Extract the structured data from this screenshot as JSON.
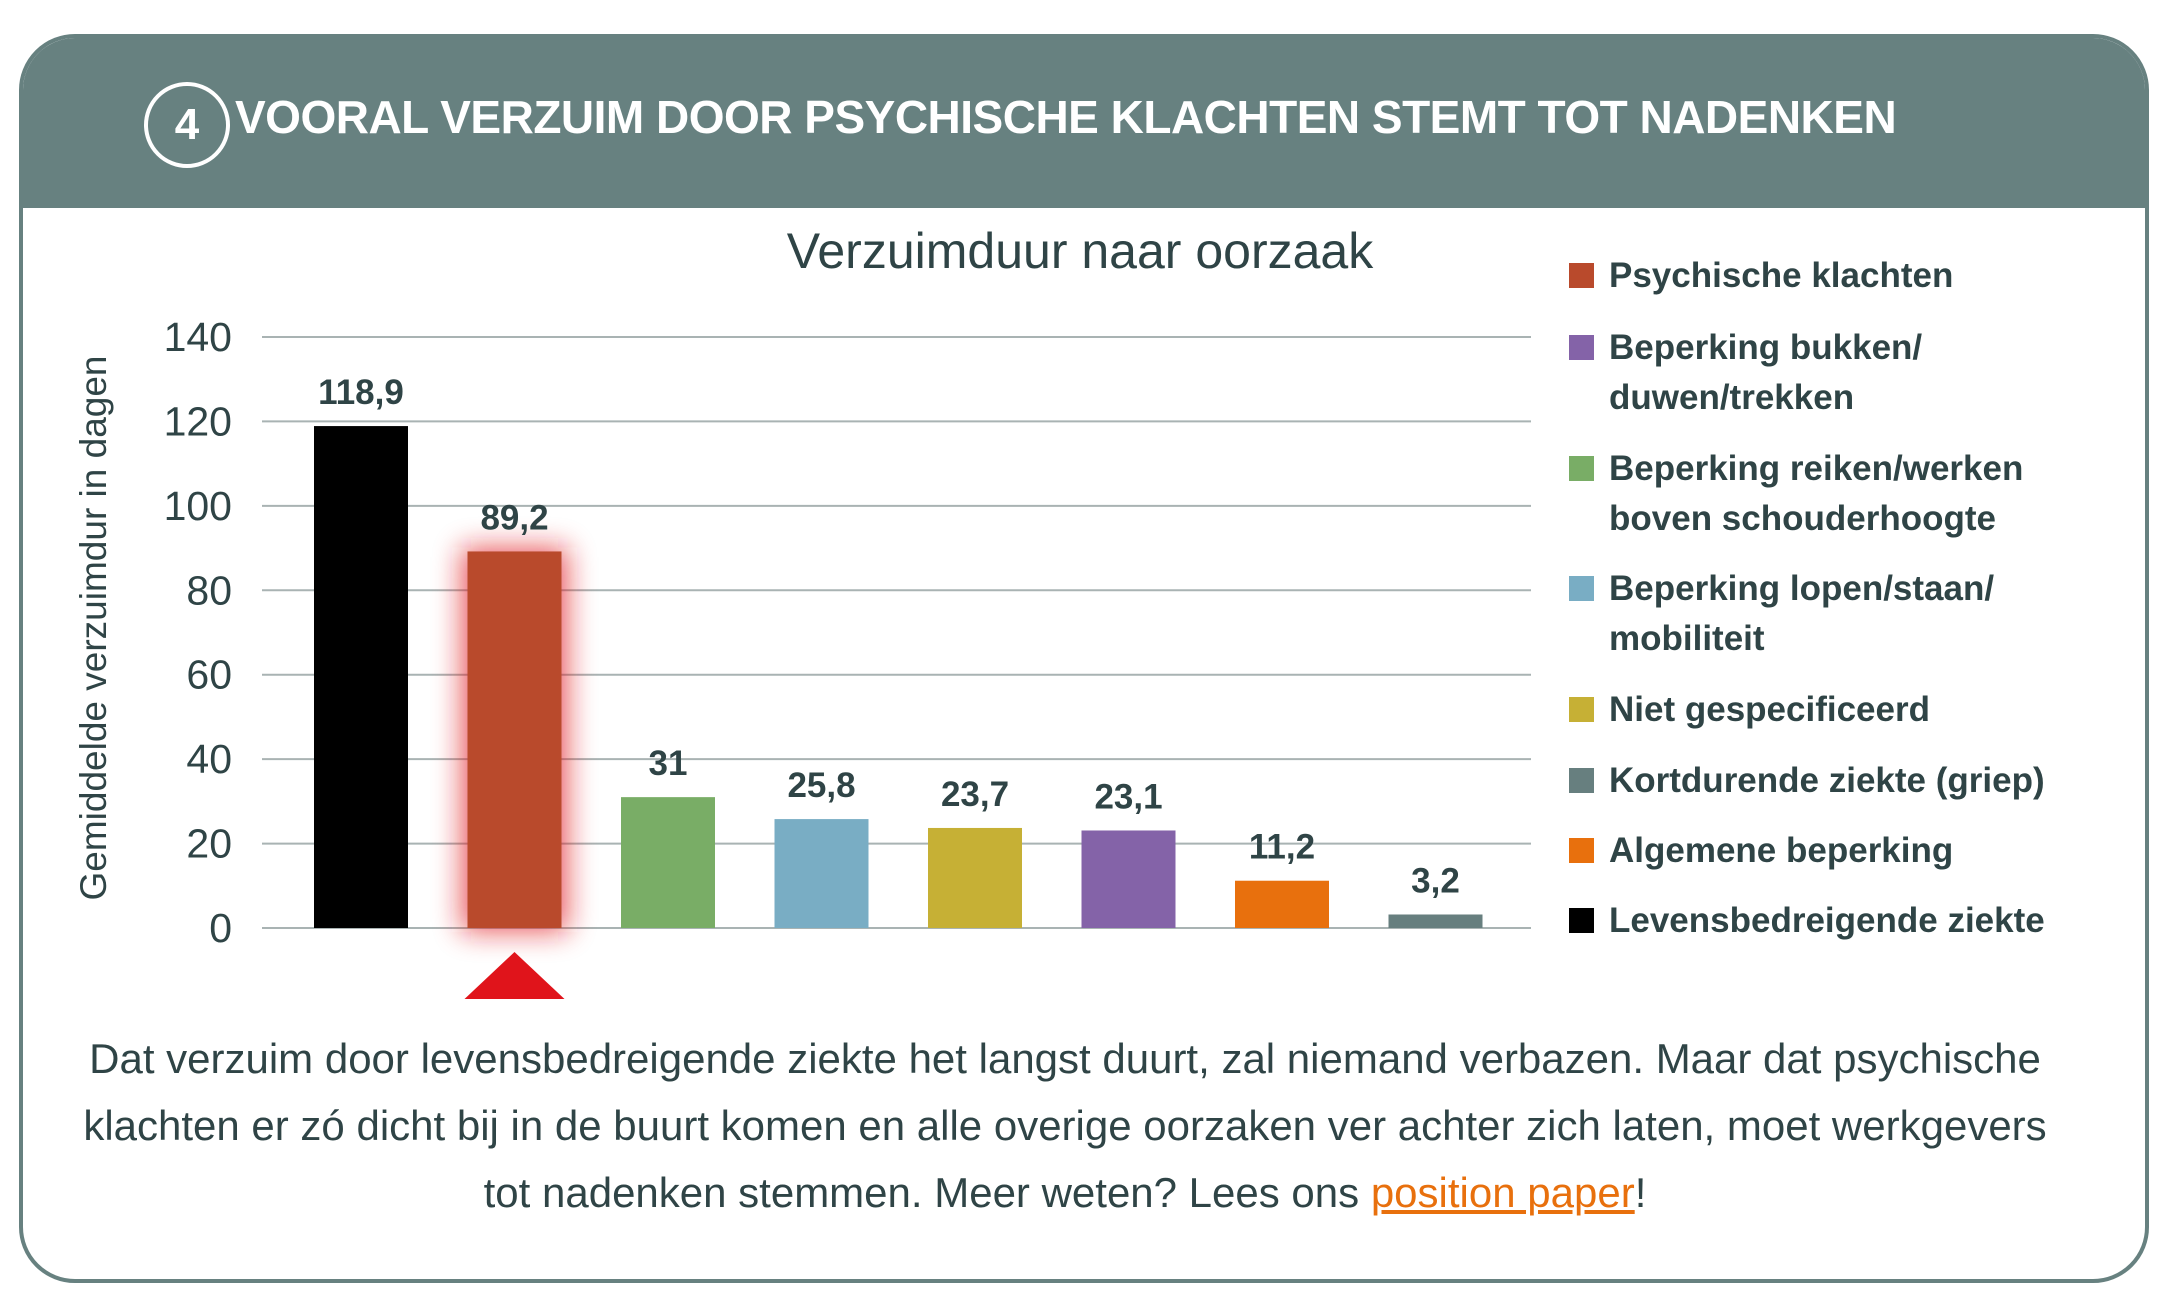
{
  "header": {
    "number": "4",
    "title": "VOORAL VERZUIM DOOR PSYCHISCHE KLACHTEN STEMT TOT NADENKEN"
  },
  "chart_data": {
    "type": "bar",
    "title": "Verzuimduur naar oorzaak",
    "xlabel": "",
    "ylabel": "Gemiddelde verzuimdur in dagen",
    "ylim": [
      0,
      140
    ],
    "yticks": [
      "0",
      "20",
      "40",
      "60",
      "80",
      "100",
      "120",
      "140"
    ],
    "grid": true,
    "legend_position": "right",
    "categories": [
      "Levensbedreigende ziekte",
      "Psychische klachten",
      "Beperking reiken/werken boven schouderhoogte",
      "Beperking lopen/staan/ mobiliteit",
      "Niet gespecificeerd",
      "Beperking bukken/ duwen/trekken",
      "Algemene beperking",
      "Kortdurende ziekte (griep)"
    ],
    "values": [
      118.9,
      89.2,
      31,
      25.8,
      23.7,
      23.1,
      11.2,
      3.2
    ],
    "value_labels": [
      "118,9",
      "89,2",
      "31",
      "25,8",
      "23,7",
      "23,1",
      "11,2",
      "3,2"
    ],
    "colors": [
      "#000000",
      "#b94a2c",
      "#79ad66",
      "#79adc4",
      "#c6b035",
      "#8463a8",
      "#e8700d",
      "#677f7f"
    ],
    "highlighted_index": 1,
    "highlight_color": "#e0141b"
  },
  "legend": [
    {
      "lines": [
        "Psychische klachten"
      ],
      "color": "#b94a2c"
    },
    {
      "lines": [
        "Beperking bukken/",
        "duwen/trekken"
      ],
      "color": "#8463a8"
    },
    {
      "lines": [
        "Beperking reiken/werken",
        "boven schouderhoogte"
      ],
      "color": "#79ad66"
    },
    {
      "lines": [
        "Beperking lopen/staan/",
        "mobiliteit"
      ],
      "color": "#79adc4"
    },
    {
      "lines": [
        "Niet gespecificeerd"
      ],
      "color": "#c6b035"
    },
    {
      "lines": [
        "Kortdurende ziekte (griep)"
      ],
      "color": "#677f7f"
    },
    {
      "lines": [
        "Algemene beperking"
      ],
      "color": "#e8700d"
    },
    {
      "lines": [
        "Levensbedreigende ziekte"
      ],
      "color": "#000000"
    }
  ],
  "footer": {
    "text": "Dat verzuim door levensbedreigende ziekte het langst duurt, zal niemand verbazen. Maar dat psychische klachten er zó dicht bij in de buurt komen en alle overige oorzaken ver achter zich laten, moet werkgevers tot nadenken stemmen. Meer weten? Lees ons ",
    "link": "position paper",
    "end": "!"
  }
}
